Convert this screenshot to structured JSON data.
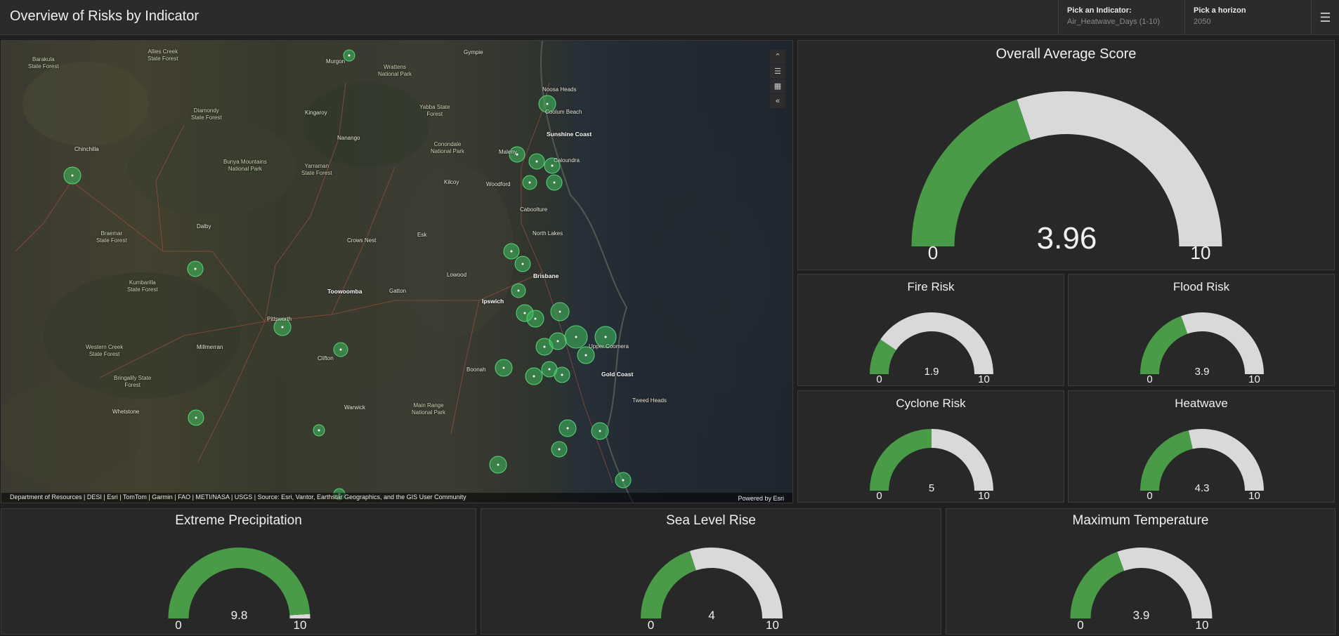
{
  "header": {
    "title": "Overview of Risks by Indicator",
    "indicator_selector": {
      "label": "Pick an Indicator:",
      "value": "Air_Heatwave_Days (1-10)"
    },
    "horizon_selector": {
      "label": "Pick a horizon",
      "value": "2050"
    },
    "menu_icon": "hamburger-menu-icon"
  },
  "map": {
    "tools": [
      {
        "name": "collapse-up-icon",
        "glyph": "⌃"
      },
      {
        "name": "legend-list-icon",
        "glyph": "☰"
      },
      {
        "name": "basemap-gallery-icon",
        "glyph": "▦"
      },
      {
        "name": "collapse-left-icon",
        "glyph": "«"
      }
    ],
    "places": [
      {
        "text": "Barakula\nState Forest",
        "type": "park"
      },
      {
        "text": "Allies Creek\nState Forest",
        "type": "park"
      },
      {
        "text": "Murgon",
        "type": "town"
      },
      {
        "text": "Wrattens\nNational Park",
        "type": "park"
      },
      {
        "text": "Gympie",
        "type": "town"
      },
      {
        "text": "Noosa Heads",
        "type": "town"
      },
      {
        "text": "Diamondy\nState Forest",
        "type": "park"
      },
      {
        "text": "Kingaroy",
        "type": "town"
      },
      {
        "text": "Yabba State\nForest",
        "type": "park"
      },
      {
        "text": "Coolum Beach",
        "type": "town"
      },
      {
        "text": "Sunshine Coast",
        "type": "city"
      },
      {
        "text": "Chinchilla",
        "type": "town"
      },
      {
        "text": "Nanango",
        "type": "town"
      },
      {
        "text": "Conondale\nNational Park",
        "type": "park"
      },
      {
        "text": "Maleny",
        "type": "town"
      },
      {
        "text": "Caloundra",
        "type": "town"
      },
      {
        "text": "Bunya Mountains\nNational Park",
        "type": "park"
      },
      {
        "text": "Yarraman\nState Forest",
        "type": "park"
      },
      {
        "text": "Kilcoy",
        "type": "town"
      },
      {
        "text": "Woodford",
        "type": "town"
      },
      {
        "text": "Caboolture",
        "type": "town"
      },
      {
        "text": "Dalby",
        "type": "town"
      },
      {
        "text": "Braemar\nState Forest",
        "type": "park"
      },
      {
        "text": "Crows Nest",
        "type": "town"
      },
      {
        "text": "Esk",
        "type": "town"
      },
      {
        "text": "North Lakes",
        "type": "town"
      },
      {
        "text": "Lowood",
        "type": "town"
      },
      {
        "text": "Brisbane",
        "type": "city"
      },
      {
        "text": "Kumbarilla\nState Forest",
        "type": "park"
      },
      {
        "text": "Toowoomba",
        "type": "city"
      },
      {
        "text": "Gatton",
        "type": "town"
      },
      {
        "text": "Ipswich",
        "type": "city"
      },
      {
        "text": "Pittsworth",
        "type": "town"
      },
      {
        "text": "Upper Coomera",
        "type": "town"
      },
      {
        "text": "Western Creek\nState Forest",
        "type": "park"
      },
      {
        "text": "Millmerran",
        "type": "town"
      },
      {
        "text": "Clifton",
        "type": "town"
      },
      {
        "text": "Gold Coast",
        "type": "city"
      },
      {
        "text": "Boonah",
        "type": "town"
      },
      {
        "text": "Bringalily State\nForest",
        "type": "park"
      },
      {
        "text": "Tweed Heads",
        "type": "town"
      },
      {
        "text": "Warwick",
        "type": "town"
      },
      {
        "text": "Main Range\nNational Park",
        "type": "park"
      },
      {
        "text": "Whetstone",
        "type": "town"
      }
    ],
    "attribution": "Department of Resources | DESI | Esri | TomTom | Garmin | FAO | METI/NASA | USGS | Source: Esri, Vantor, Earthstar Geographics, and the GIS User Community",
    "powered_by": "Powered by Esri",
    "marker_color": "#3fbf5f"
  },
  "colors": {
    "gauge_fill": "#4a9b48",
    "gauge_track": "#d9d9d9",
    "panel_bg": "#282828"
  },
  "gauges": [
    {
      "id": "overall",
      "title": "Overall Average Score",
      "value": 3.96,
      "value_label": "3.96",
      "min": 0,
      "max": 10,
      "min_label": "0",
      "max_label": "10"
    },
    {
      "id": "fire",
      "title": "Fire Risk",
      "value": 1.9,
      "value_label": "1.9",
      "min": 0,
      "max": 10,
      "min_label": "0",
      "max_label": "10"
    },
    {
      "id": "flood",
      "title": "Flood Risk",
      "value": 3.9,
      "value_label": "3.9",
      "min": 0,
      "max": 10,
      "min_label": "0",
      "max_label": "10"
    },
    {
      "id": "cyclone",
      "title": "Cyclone Risk",
      "value": 5,
      "value_label": "5",
      "min": 0,
      "max": 10,
      "min_label": "0",
      "max_label": "10"
    },
    {
      "id": "heatwave",
      "title": "Heatwave",
      "value": 4.3,
      "value_label": "4.3",
      "min": 0,
      "max": 10,
      "min_label": "0",
      "max_label": "10"
    },
    {
      "id": "precip",
      "title": "Extreme Precipitation",
      "value": 9.8,
      "value_label": "9.8",
      "min": 0,
      "max": 10,
      "min_label": "0",
      "max_label": "10"
    },
    {
      "id": "sealevel",
      "title": "Sea Level Rise",
      "value": 4,
      "value_label": "4",
      "min": 0,
      "max": 10,
      "min_label": "0",
      "max_label": "10"
    },
    {
      "id": "maxtemp",
      "title": "Maximum Temperature",
      "value": 3.9,
      "value_label": "3.9",
      "min": 0,
      "max": 10,
      "min_label": "0",
      "max_label": "10"
    }
  ]
}
